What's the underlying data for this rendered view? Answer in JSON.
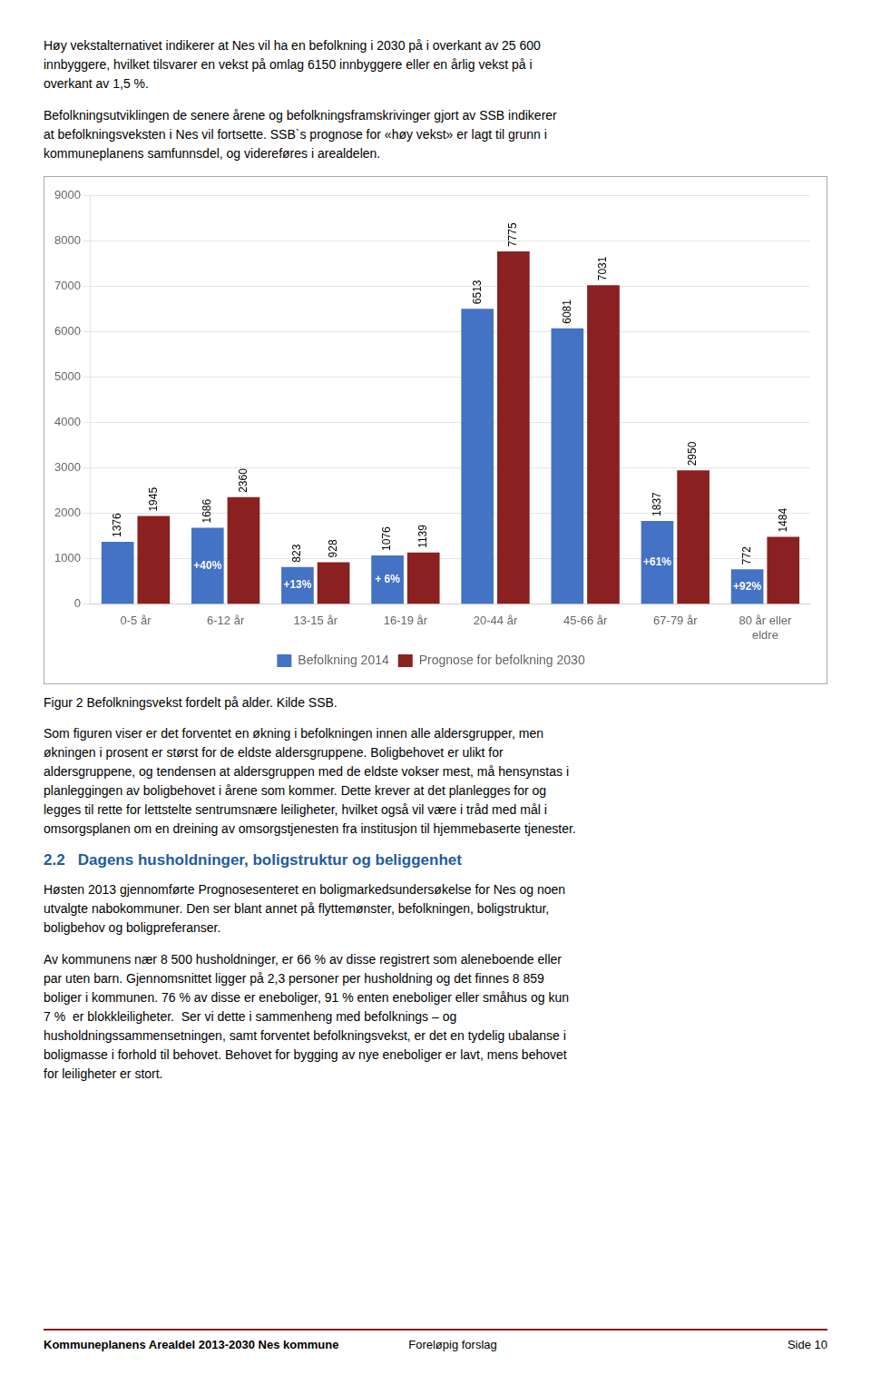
{
  "chart_data": {
    "type": "bar",
    "categories": [
      "0-5 år",
      "6-12 år",
      "13-15 år",
      "16-19 år",
      "20-44 år",
      "45-66 år",
      "67-79 år",
      "80 år eller\neldre"
    ],
    "series": [
      {
        "name": "Befolkning 2014",
        "color": "#4472C4",
        "values": [
          1376,
          1686,
          823,
          1076,
          6513,
          6081,
          1837,
          772
        ],
        "annotations": [
          null,
          "+40%",
          "+13%",
          "+ 6%",
          null,
          null,
          "+61%",
          "+92%"
        ]
      },
      {
        "name": "Prognose for befolkning 2030",
        "color": "#8B2020",
        "values": [
          1945,
          2360,
          928,
          1139,
          7775,
          7031,
          2950,
          1484
        ]
      }
    ],
    "ylim": [
      0,
      9000
    ],
    "yticks": [
      0,
      1000,
      2000,
      3000,
      4000,
      5000,
      6000,
      7000,
      8000,
      9000
    ],
    "grid": true,
    "legend": "bottom",
    "data_labels": true
  },
  "page": {
    "paragraphs_before": [
      "Høy vekstalternativet indikerer at Nes vil ha en befolkning i 2030 på i overkant av 25 600\ninnbyggere, hvilket tilsvarer en vekst på omlag 6150 innbyggere eller en årlig vekst på i\noverkant av 1,5 %.",
      "Befolkningsutviklingen de senere årene og befolkningsframskrivinger gjort av SSB indikerer\nat befolkningsveksten i Nes vil fortsette. SSB`s prognose for «høy vekst» er lagt til grunn i\nkommuneplanens samfunnsdel, og videreføres i arealdelen."
    ],
    "caption": "Figur 2 Befolkningsvekst fordelt på alder. Kilde SSB.",
    "paragraphs_after": [
      "Som figuren viser er det forventet en økning i befolkningen innen alle aldersgrupper, men\nøkningen i prosent er størst for de eldste aldersgruppene. Boligbehovet er ulikt for\naldersgruppene, og tendensen at aldersgruppen med de eldste vokser mest, må hensynstas i\nplanleggingen av boligbehovet i årene som kommer. Dette krever at det planlegges for og\nlegges til rette for lettstelte sentrumsnære leiligheter, hvilket også vil være i tråd med mål i\nomsorgsplanen om en dreining av omsorgstjenesten fra institusjon til hjemmebaserte tjenester."
    ],
    "section": {
      "header": "2.2   Dagens husholdninger, boligstruktur og beliggenhet",
      "color": "#1F5C9E",
      "paragraphs": [
        "Høsten 2013 gjennomførte Prognosesenteret en boligmarkedsundersøkelse for Nes og noen\nutvalgte nabokommuner. Den ser blant annet på flyttemønster, befolkningen, boligstruktur,\nboligbehov og boligpreferanser.",
        "Av kommunens nær 8 500 husholdninger, er 66 % av disse registrert som aleneboende eller\npar uten barn. Gjennomsnittet ligger på 2,3 personer per husholdning og det finnes 8 859\nboliger i kommunen. 76 % av disse er eneboliger, 91 % enten eneboliger eller småhus og kun\n7 %  er blokkleiligheter.  Ser vi dette i sammenheng med befolknings – og\nhusholdningssammensetningen, samt forventet befolkningsvekst, er det en tydelig ubalanse i\nboligmasse i forhold til behovet. Behovet for bygging av nye eneboliger er lavt, mens behovet\nfor leiligheter er stort."
      ]
    },
    "footer": {
      "left": "Kommuneplanens Arealdel 2013-2030 Nes kommune",
      "middle": "Foreløpig forslag",
      "right": "Side 10",
      "line_color": "#8B1A1A"
    }
  }
}
